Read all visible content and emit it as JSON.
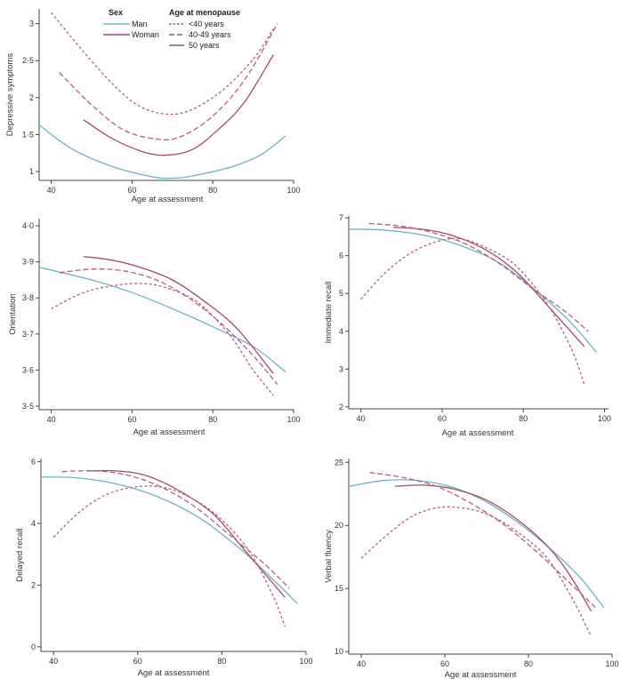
{
  "legend": {
    "sex_title": "Sex",
    "sex_items": [
      {
        "label": "Man",
        "color": "#6fb3c6"
      },
      {
        "label": "Woman",
        "color": "#a54a6a"
      }
    ],
    "menopause_title": "Age at menopause",
    "menopause_items": [
      {
        "label": "<40 years",
        "dash": "dotted"
      },
      {
        "label": "40-49 years",
        "dash": "dashed"
      },
      {
        "label": "50 years",
        "dash": "solid"
      }
    ]
  },
  "colors": {
    "man": "#6fb3c6",
    "woman": "#a54a6a",
    "woman_dash": "#b5607d"
  },
  "chart_data": [
    {
      "id": "depressive",
      "type": "line",
      "ylabel": "Depressive symptoms",
      "xlabel": "Age at assessment",
      "xlim": [
        37,
        100
      ],
      "ylim": [
        0.88,
        3.2
      ],
      "xticks": [
        40,
        60,
        80,
        100
      ],
      "xtick_labels": [
        "40",
        "60",
        "80",
        "100"
      ],
      "yticks": [
        1,
        1.5,
        2,
        2.5,
        3
      ],
      "ytick_labels": [
        "1",
        "1·5",
        "2",
        "2·5",
        "3"
      ],
      "series": [
        {
          "name": "Man",
          "style": "solid",
          "color": "#6fb3c6",
          "x": [
            37,
            45,
            55,
            65,
            70,
            75,
            85,
            92,
            98
          ],
          "y": [
            1.63,
            1.31,
            1.07,
            0.93,
            0.91,
            0.94,
            1.07,
            1.23,
            1.48
          ]
        },
        {
          "name": "Woman, 50 years",
          "style": "solid",
          "color": "#a54a6a",
          "x": [
            48,
            55,
            62,
            68,
            75,
            82,
            88,
            95
          ],
          "y": [
            1.7,
            1.45,
            1.28,
            1.22,
            1.3,
            1.6,
            1.95,
            2.58
          ]
        },
        {
          "name": "Woman, 40-49 years",
          "style": "dashed",
          "color": "#b5607d",
          "x": [
            42,
            50,
            58,
            66,
            72,
            80,
            88,
            96
          ],
          "y": [
            2.34,
            1.9,
            1.56,
            1.44,
            1.47,
            1.75,
            2.25,
            3.0
          ]
        },
        {
          "name": "Woman, <40 years",
          "style": "dotted",
          "color": "#b5607d",
          "x": [
            40,
            48,
            56,
            62,
            68,
            74,
            82,
            90,
            95
          ],
          "y": [
            3.15,
            2.62,
            2.14,
            1.88,
            1.78,
            1.82,
            2.08,
            2.52,
            2.93
          ]
        }
      ]
    },
    {
      "id": "orientation",
      "type": "line",
      "ylabel": "Orientation",
      "xlabel": "Age at assessment",
      "xlim": [
        37,
        100
      ],
      "ylim": [
        3.49,
        4.02
      ],
      "xticks": [
        40,
        60,
        80,
        100
      ],
      "xtick_labels": [
        "40",
        "60",
        "80",
        "100"
      ],
      "yticks": [
        3.5,
        3.6,
        3.7,
        3.8,
        3.9,
        4.0
      ],
      "ytick_labels": [
        "3·5",
        "3·6",
        "3·7",
        "3·8",
        "3·9",
        "4·0"
      ],
      "series": [
        {
          "name": "Man",
          "style": "solid",
          "color": "#6fb3c6",
          "x": [
            37,
            50,
            60,
            70,
            80,
            90,
            98
          ],
          "y": [
            3.885,
            3.85,
            3.815,
            3.77,
            3.72,
            3.665,
            3.595
          ]
        },
        {
          "name": "Woman, 50 years",
          "style": "solid",
          "color": "#a54a6a",
          "x": [
            48,
            55,
            62,
            70,
            78,
            86,
            95
          ],
          "y": [
            3.915,
            3.905,
            3.885,
            3.85,
            3.79,
            3.715,
            3.59
          ]
        },
        {
          "name": "Woman, 40-49 years",
          "style": "dashed",
          "color": "#b5607d",
          "x": [
            42,
            50,
            58,
            66,
            74,
            82,
            90,
            96
          ],
          "y": [
            3.87,
            3.88,
            3.875,
            3.85,
            3.8,
            3.73,
            3.64,
            3.56
          ]
        },
        {
          "name": "Woman, <40 years",
          "style": "dotted",
          "color": "#b5607d",
          "x": [
            40,
            48,
            56,
            62,
            68,
            76,
            84,
            90,
            95
          ],
          "y": [
            3.77,
            3.815,
            3.835,
            3.84,
            3.83,
            3.79,
            3.7,
            3.6,
            3.53
          ]
        }
      ]
    },
    {
      "id": "immediate",
      "type": "line",
      "ylabel": "Immediate recall",
      "xlabel": "Age at assessment",
      "xlim": [
        37,
        101
      ],
      "ylim": [
        1.95,
        7.05
      ],
      "xticks": [
        40,
        60,
        80,
        100
      ],
      "xtick_labels": [
        "40",
        "60",
        "80",
        "100"
      ],
      "yticks": [
        2,
        3,
        4,
        5,
        6,
        7
      ],
      "ytick_labels": [
        "2",
        "3",
        "4",
        "5",
        "6",
        "7"
      ],
      "series": [
        {
          "name": "Man",
          "style": "solid",
          "color": "#6fb3c6",
          "x": [
            37,
            45,
            55,
            65,
            75,
            85,
            92,
            98
          ],
          "y": [
            6.7,
            6.68,
            6.55,
            6.25,
            5.75,
            4.9,
            4.2,
            3.45
          ]
        },
        {
          "name": "Woman, 50 years",
          "style": "solid",
          "color": "#a54a6a",
          "x": [
            48,
            55,
            62,
            70,
            78,
            85,
            90,
            95
          ],
          "y": [
            6.75,
            6.7,
            6.55,
            6.2,
            5.6,
            4.8,
            4.2,
            3.6
          ]
        },
        {
          "name": "Woman, 40-49 years",
          "style": "dashed",
          "color": "#b5607d",
          "x": [
            42,
            50,
            58,
            66,
            74,
            82,
            90,
            96
          ],
          "y": [
            6.85,
            6.78,
            6.6,
            6.3,
            5.8,
            5.15,
            4.55,
            4.0
          ]
        },
        {
          "name": "Woman, <40 years",
          "style": "dotted",
          "color": "#b5607d",
          "x": [
            40,
            46,
            52,
            58,
            64,
            70,
            78,
            86,
            92,
            95
          ],
          "y": [
            4.85,
            5.55,
            6.05,
            6.35,
            6.45,
            6.25,
            5.75,
            4.7,
            3.5,
            2.6
          ]
        }
      ]
    },
    {
      "id": "delayed",
      "type": "line",
      "ylabel": "Delayed recall",
      "xlabel": "Age at assessment",
      "xlim": [
        37,
        100
      ],
      "ylim": [
        -0.15,
        6.1
      ],
      "xticks": [
        40,
        60,
        80,
        100
      ],
      "xtick_labels": [
        "40",
        "60",
        "80",
        "100"
      ],
      "yticks": [
        0,
        2,
        4,
        6
      ],
      "ytick_labels": [
        "0",
        "2",
        "4",
        "6"
      ],
      "series": [
        {
          "name": "Man",
          "style": "solid",
          "color": "#6fb3c6",
          "x": [
            37,
            45,
            55,
            65,
            75,
            85,
            92,
            98
          ],
          "y": [
            5.5,
            5.48,
            5.28,
            4.85,
            4.15,
            3.1,
            2.2,
            1.4
          ]
        },
        {
          "name": "Woman, 50 years",
          "style": "solid",
          "color": "#a54a6a",
          "x": [
            48,
            55,
            62,
            70,
            78,
            85,
            90,
            95
          ],
          "y": [
            5.7,
            5.7,
            5.55,
            5.05,
            4.3,
            3.2,
            2.4,
            1.6
          ]
        },
        {
          "name": "Woman, 40-49 years",
          "style": "dashed",
          "color": "#b5607d",
          "x": [
            42,
            50,
            58,
            66,
            74,
            82,
            90,
            96
          ],
          "y": [
            5.68,
            5.7,
            5.55,
            5.15,
            4.5,
            3.6,
            2.7,
            1.9
          ]
        },
        {
          "name": "Woman, <40 years",
          "style": "dotted",
          "color": "#b5607d",
          "x": [
            40,
            46,
            52,
            58,
            64,
            70,
            78,
            86,
            92,
            95
          ],
          "y": [
            3.55,
            4.35,
            4.9,
            5.15,
            5.2,
            5.0,
            4.35,
            3.2,
            1.7,
            0.65
          ]
        }
      ]
    },
    {
      "id": "verbal",
      "type": "line",
      "ylabel": "Verbal fluency",
      "xlabel": "Age at assessment",
      "xlim": [
        37,
        100
      ],
      "ylim": [
        9.8,
        25.3
      ],
      "xticks": [
        40,
        60,
        80,
        100
      ],
      "xtick_labels": [
        "40",
        "60",
        "80",
        "100"
      ],
      "yticks": [
        10,
        15,
        20,
        25
      ],
      "ytick_labels": [
        "10",
        "15",
        "20",
        "25"
      ],
      "series": [
        {
          "name": "Man",
          "style": "solid",
          "color": "#6fb3c6",
          "x": [
            37,
            45,
            52,
            60,
            68,
            76,
            84,
            92,
            98
          ],
          "y": [
            23.1,
            23.55,
            23.6,
            23.2,
            22.2,
            20.6,
            18.5,
            16.0,
            13.5
          ]
        },
        {
          "name": "Woman, 50 years",
          "style": "solid",
          "color": "#a54a6a",
          "x": [
            48,
            55,
            62,
            70,
            78,
            85,
            90,
            95
          ],
          "y": [
            23.1,
            23.2,
            22.9,
            22.0,
            20.3,
            18.2,
            16.0,
            13.2
          ]
        },
        {
          "name": "Woman, 40-49 years",
          "style": "dashed",
          "color": "#b5607d",
          "x": [
            42,
            50,
            58,
            66,
            74,
            82,
            90,
            96
          ],
          "y": [
            24.2,
            23.8,
            23.1,
            21.8,
            20.1,
            17.9,
            15.4,
            13.5
          ]
        },
        {
          "name": "Woman, <40 years",
          "style": "dotted",
          "color": "#b5607d",
          "x": [
            40,
            46,
            52,
            58,
            64,
            70,
            76,
            84,
            90,
            95
          ],
          "y": [
            17.4,
            19.2,
            20.7,
            21.4,
            21.4,
            20.9,
            19.8,
            17.6,
            14.5,
            11.2
          ]
        }
      ]
    }
  ]
}
